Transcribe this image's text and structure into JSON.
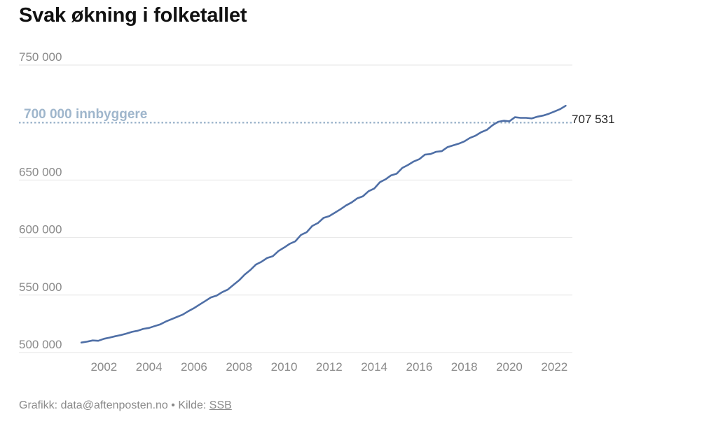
{
  "title": "Svak økning i folketallet",
  "footer": {
    "credit": "Grafikk: data@aftenposten.no",
    "separator": " • ",
    "source_label": "Kilde: ",
    "source_link": "SSB"
  },
  "colors": {
    "line": "#4f6fa6",
    "reference": "#9fb6cc",
    "grid": "#e6e6e6",
    "axis_text": "#8a8a8a",
    "end_label": "#222222"
  },
  "chart_data": {
    "type": "line",
    "title": "Svak økning i folketallet",
    "xlabel": "",
    "ylabel": "",
    "xlim": [
      2000.9,
      2022.8
    ],
    "ylim": [
      500000,
      750000
    ],
    "yticks": [
      500000,
      550000,
      600000,
      650000,
      700000,
      750000
    ],
    "ytick_labels": [
      "500 000",
      "550 000",
      "600 000",
      "650 000",
      "",
      "750 000"
    ],
    "xticks": [
      2002,
      2004,
      2006,
      2008,
      2010,
      2012,
      2014,
      2016,
      2018,
      2020,
      2022
    ],
    "xtick_labels": [
      "2002",
      "2004",
      "2006",
      "2008",
      "2010",
      "2012",
      "2014",
      "2016",
      "2018",
      "2020",
      "2022"
    ],
    "grid": true,
    "reference_line": {
      "value": 700000,
      "label": "700 000 innbyggere"
    },
    "end_label": "707 531",
    "series": [
      {
        "x": [
          2001.0,
          2001.25,
          2001.5,
          2001.75,
          2002.0,
          2002.25,
          2002.5,
          2002.75,
          2003.0,
          2003.25,
          2003.5,
          2003.75,
          2004.0,
          2004.25,
          2004.5,
          2004.75,
          2005.0,
          2005.25,
          2005.5,
          2005.75,
          2006.0,
          2006.25,
          2006.5,
          2006.75,
          2007.0,
          2007.25,
          2007.5,
          2007.75,
          2008.0,
          2008.25,
          2008.5,
          2008.75,
          2009.0,
          2009.25,
          2009.5,
          2009.75,
          2010.0,
          2010.25,
          2010.5,
          2010.75,
          2011.0,
          2011.25,
          2011.5,
          2011.75,
          2012.0,
          2012.25,
          2012.5,
          2012.75,
          2013.0,
          2013.25,
          2013.5,
          2013.75,
          2014.0,
          2014.25,
          2014.5,
          2014.75,
          2015.0,
          2015.25,
          2015.5,
          2015.75,
          2016.0,
          2016.25,
          2016.5,
          2016.75,
          2017.0,
          2017.25,
          2017.5,
          2017.75,
          2018.0,
          2018.25,
          2018.5,
          2018.75,
          2019.0,
          2019.25,
          2019.5,
          2019.75,
          2020.0,
          2020.25,
          2020.5,
          2020.75,
          2021.0,
          2021.25,
          2021.5,
          2021.75,
          2022.0,
          2022.25,
          2022.5
        ],
        "values": [
          508700,
          509500,
          510500,
          510200,
          512000,
          513000,
          514200,
          515200,
          516500,
          518000,
          519000,
          520600,
          521400,
          523000,
          524500,
          527000,
          529000,
          531000,
          533000,
          536000,
          538600,
          541800,
          544800,
          548000,
          549500,
          552500,
          554800,
          558800,
          562800,
          567800,
          571800,
          576500,
          579000,
          582300,
          583800,
          588300,
          591300,
          594600,
          596800,
          602300,
          604600,
          610100,
          612600,
          617100,
          618600,
          621600,
          624600,
          627900,
          630600,
          634100,
          635900,
          640300,
          642600,
          648100,
          650600,
          654100,
          655600,
          660600,
          663100,
          666100,
          668100,
          672100,
          672600,
          674600,
          675100,
          678600,
          680100,
          681600,
          683600,
          686600,
          688600,
          691600,
          693600,
          697600,
          700600,
          701600,
          701100,
          704600,
          704100,
          704100,
          703600,
          705100,
          706100,
          707600,
          709600,
          711600,
          714600
        ]
      }
    ]
  }
}
